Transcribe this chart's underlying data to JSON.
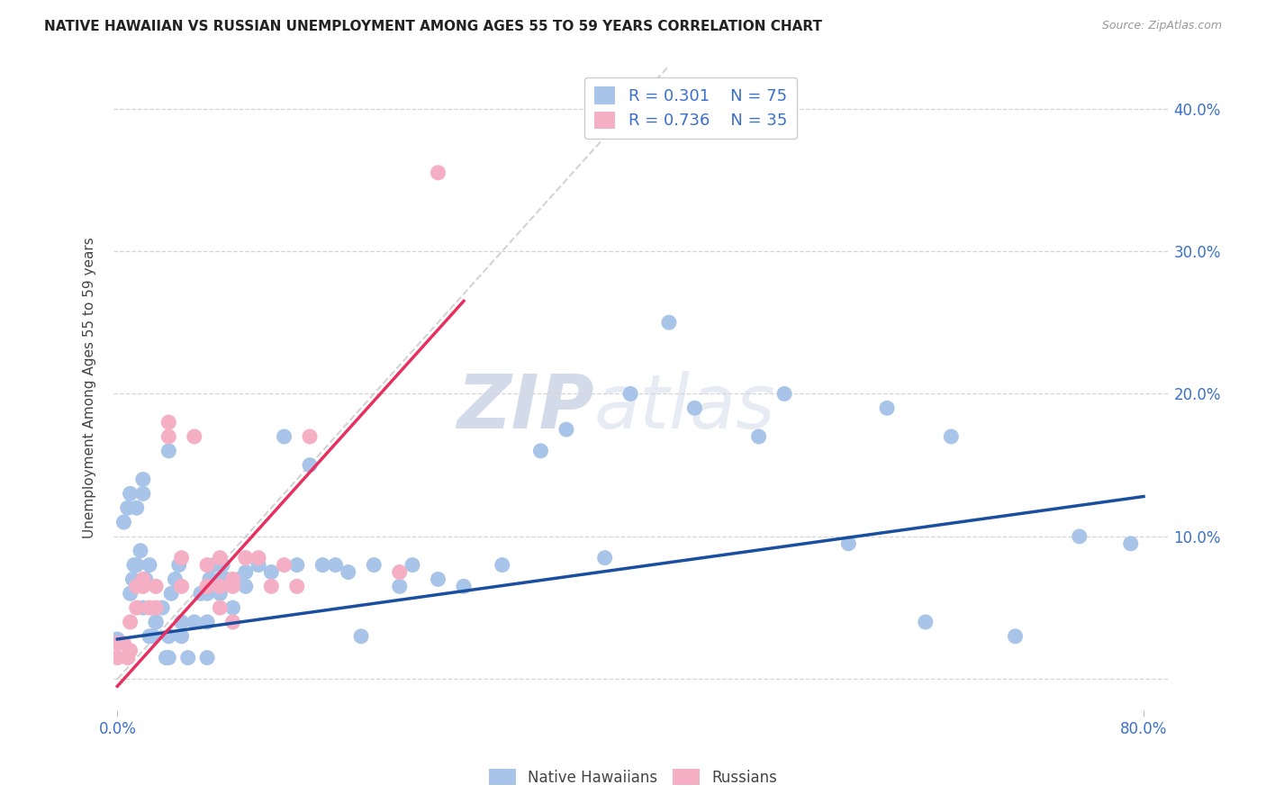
{
  "title": "NATIVE HAWAIIAN VS RUSSIAN UNEMPLOYMENT AMONG AGES 55 TO 59 YEARS CORRELATION CHART",
  "source": "Source: ZipAtlas.com",
  "ylabel": "Unemployment Among Ages 55 to 59 years",
  "xlim": [
    -0.003,
    0.82
  ],
  "ylim": [
    -0.022,
    0.43
  ],
  "x_ticks": [
    0.0,
    0.8
  ],
  "x_tick_labels": [
    "0.0%",
    "80.0%"
  ],
  "y_ticks": [
    0.0,
    0.1,
    0.2,
    0.3,
    0.4
  ],
  "y_tick_labels": [
    "",
    "10.0%",
    "20.0%",
    "30.0%",
    "40.0%"
  ],
  "legend1_r": "R = 0.301",
  "legend1_n": "  N = 75",
  "legend2_r": "R = 0.736",
  "legend2_n": "  N = 35",
  "blue_scatter": "#a8c4e8",
  "pink_scatter": "#f5afc4",
  "line_blue": "#1a4fa0",
  "line_pink": "#e83060",
  "diag_color": "#c8c8c8",
  "grid_color": "#d5d5d5",
  "watermark_color": "#d0daea",
  "blue_line_y0": 0.028,
  "blue_line_y1": 0.128,
  "pink_line_x0": 0.0,
  "pink_line_y0": -0.005,
  "pink_line_x1": 0.27,
  "pink_line_y1": 0.265,
  "nh_x": [
    0.0,
    0.005,
    0.008,
    0.01,
    0.01,
    0.012,
    0.013,
    0.015,
    0.015,
    0.018,
    0.02,
    0.02,
    0.02,
    0.022,
    0.025,
    0.025,
    0.028,
    0.03,
    0.03,
    0.035,
    0.038,
    0.04,
    0.04,
    0.04,
    0.042,
    0.045,
    0.048,
    0.05,
    0.05,
    0.055,
    0.06,
    0.065,
    0.07,
    0.07,
    0.07,
    0.072,
    0.075,
    0.08,
    0.08,
    0.082,
    0.085,
    0.09,
    0.095,
    0.1,
    0.1,
    0.11,
    0.12,
    0.13,
    0.14,
    0.15,
    0.16,
    0.17,
    0.18,
    0.19,
    0.2,
    0.22,
    0.23,
    0.25,
    0.27,
    0.3,
    0.33,
    0.35,
    0.38,
    0.4,
    0.43,
    0.45,
    0.5,
    0.52,
    0.57,
    0.6,
    0.63,
    0.65,
    0.7,
    0.75,
    0.79
  ],
  "nh_y": [
    0.028,
    0.11,
    0.12,
    0.13,
    0.06,
    0.07,
    0.08,
    0.08,
    0.12,
    0.09,
    0.13,
    0.14,
    0.05,
    0.07,
    0.08,
    0.03,
    0.03,
    0.04,
    0.04,
    0.05,
    0.015,
    0.015,
    0.03,
    0.16,
    0.06,
    0.07,
    0.08,
    0.03,
    0.04,
    0.015,
    0.04,
    0.06,
    0.015,
    0.04,
    0.06,
    0.07,
    0.08,
    0.06,
    0.07,
    0.08,
    0.07,
    0.05,
    0.07,
    0.075,
    0.065,
    0.08,
    0.075,
    0.17,
    0.08,
    0.15,
    0.08,
    0.08,
    0.075,
    0.03,
    0.08,
    0.065,
    0.08,
    0.07,
    0.065,
    0.08,
    0.16,
    0.175,
    0.085,
    0.2,
    0.25,
    0.19,
    0.17,
    0.2,
    0.095,
    0.19,
    0.04,
    0.17,
    0.03,
    0.1,
    0.095
  ],
  "ru_x": [
    0.0,
    0.0,
    0.005,
    0.008,
    0.01,
    0.01,
    0.015,
    0.015,
    0.02,
    0.02,
    0.025,
    0.03,
    0.03,
    0.04,
    0.04,
    0.05,
    0.05,
    0.06,
    0.07,
    0.07,
    0.07,
    0.08,
    0.08,
    0.08,
    0.09,
    0.09,
    0.09,
    0.1,
    0.11,
    0.12,
    0.13,
    0.14,
    0.15,
    0.22,
    0.25
  ],
  "ru_y": [
    0.015,
    0.025,
    0.025,
    0.015,
    0.02,
    0.04,
    0.05,
    0.065,
    0.065,
    0.07,
    0.05,
    0.05,
    0.065,
    0.17,
    0.18,
    0.065,
    0.085,
    0.17,
    0.065,
    0.065,
    0.08,
    0.05,
    0.065,
    0.085,
    0.04,
    0.065,
    0.07,
    0.085,
    0.085,
    0.065,
    0.08,
    0.065,
    0.17,
    0.075,
    0.355
  ]
}
